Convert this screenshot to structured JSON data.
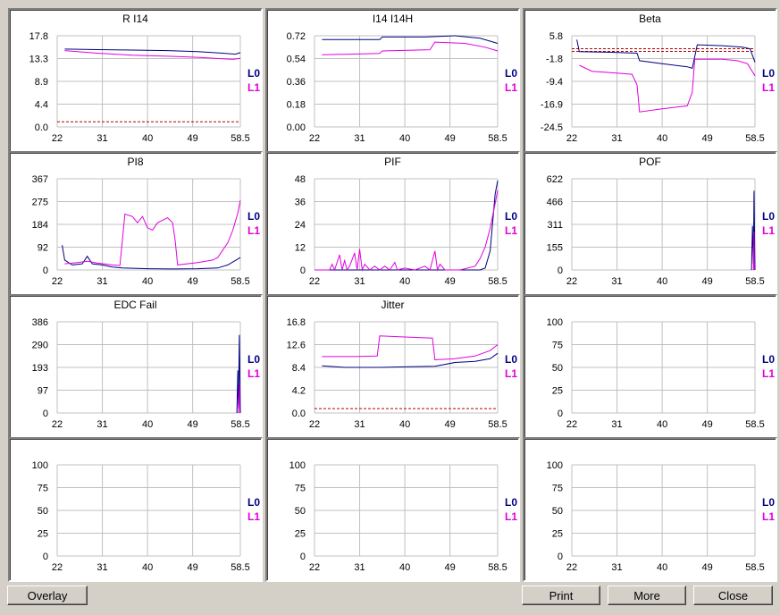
{
  "colors": {
    "L0": "#000080",
    "L1": "#e000e0",
    "threshold": "#b00000",
    "grid": "#c0c0c0"
  },
  "buttons": {
    "overlay": "Overlay",
    "print": "Print",
    "more": "More",
    "close": "Close"
  },
  "chart_data": [
    {
      "type": "line",
      "title": "R I14",
      "x_ticks": [
        "22",
        "31",
        "40",
        "49",
        "58.5"
      ],
      "xlim": [
        22,
        58.5
      ],
      "y_ticks": [
        "0.0",
        "4.4",
        "8.9",
        "13.3",
        "17.8"
      ],
      "ylim": [
        0,
        17.8
      ],
      "legend": [
        "L0",
        "L1"
      ],
      "legend_position": "right",
      "threshold": 1.0,
      "series": [
        {
          "name": "L0",
          "points": [
            [
              23.5,
              15.2
            ],
            [
              30,
              15.1
            ],
            [
              37,
              15.0
            ],
            [
              44,
              14.9
            ],
            [
              50,
              14.7
            ],
            [
              55,
              14.4
            ],
            [
              57.5,
              14.2
            ],
            [
              58.5,
              14.5
            ]
          ]
        },
        {
          "name": "L1",
          "points": [
            [
              23.5,
              14.9
            ],
            [
              30,
              14.4
            ],
            [
              37,
              14.0
            ],
            [
              44,
              13.8
            ],
            [
              50,
              13.6
            ],
            [
              55,
              13.3
            ],
            [
              57,
              13.2
            ],
            [
              58.5,
              13.4
            ]
          ]
        }
      ]
    },
    {
      "type": "line",
      "title": "I14 I14H",
      "x_ticks": [
        "22",
        "31",
        "40",
        "49",
        "58.5"
      ],
      "xlim": [
        22,
        58.5
      ],
      "y_ticks": [
        "0.00",
        "0.18",
        "0.36",
        "0.54",
        "0.72"
      ],
      "ylim": [
        0,
        0.72
      ],
      "legend": [
        "L0",
        "L1"
      ],
      "legend_position": "right",
      "series": [
        {
          "name": "L0",
          "points": [
            [
              23.5,
              0.69
            ],
            [
              35,
              0.69
            ],
            [
              35.5,
              0.71
            ],
            [
              44,
              0.71
            ],
            [
              50,
              0.72
            ],
            [
              55,
              0.7
            ],
            [
              58.5,
              0.66
            ]
          ]
        },
        {
          "name": "L1",
          "points": [
            [
              23.5,
              0.57
            ],
            [
              35,
              0.58
            ],
            [
              35.5,
              0.6
            ],
            [
              45,
              0.61
            ],
            [
              46,
              0.67
            ],
            [
              52,
              0.66
            ],
            [
              56,
              0.63
            ],
            [
              58.5,
              0.6
            ]
          ]
        }
      ]
    },
    {
      "type": "line",
      "title": "Beta",
      "x_ticks": [
        "22",
        "31",
        "40",
        "49",
        "58.5"
      ],
      "xlim": [
        22,
        58.5
      ],
      "y_ticks": [
        "-24.5",
        "-16.9",
        "-9.4",
        "-1.8",
        "5.8"
      ],
      "ylim": [
        -24.5,
        5.8
      ],
      "legend": [
        "L0",
        "L1"
      ],
      "legend_position": "right",
      "thresholds": [
        1.5,
        0.6
      ],
      "series": [
        {
          "name": "L0",
          "points": [
            [
              23,
              4.5
            ],
            [
              23.5,
              0.5
            ],
            [
              30,
              0.3
            ],
            [
              35,
              0.0
            ],
            [
              35.5,
              -2.5
            ],
            [
              40,
              -3.5
            ],
            [
              45,
              -4.5
            ],
            [
              46,
              -5.0
            ],
            [
              47,
              2.8
            ],
            [
              52,
              2.5
            ],
            [
              56,
              2.0
            ],
            [
              57.5,
              1.5
            ],
            [
              58.5,
              -3.0
            ]
          ]
        },
        {
          "name": "L1",
          "points": [
            [
              23.5,
              -4.0
            ],
            [
              26,
              -6.0
            ],
            [
              30,
              -6.5
            ],
            [
              34,
              -7.0
            ],
            [
              35,
              -10.5
            ],
            [
              35.5,
              -19.5
            ],
            [
              40,
              -18.5
            ],
            [
              45,
              -17.5
            ],
            [
              46,
              -13.0
            ],
            [
              46.5,
              -2.0
            ],
            [
              52,
              -2.0
            ],
            [
              55,
              -2.5
            ],
            [
              57,
              -3.5
            ],
            [
              58.5,
              -7.5
            ]
          ]
        }
      ]
    },
    {
      "type": "line",
      "title": "PI8",
      "x_ticks": [
        "22",
        "31",
        "40",
        "49",
        "58.5"
      ],
      "xlim": [
        22,
        58.5
      ],
      "y_ticks": [
        "0",
        "92",
        "184",
        "275",
        "367"
      ],
      "ylim": [
        0,
        367
      ],
      "legend": [
        "L0",
        "L1"
      ],
      "legend_position": "right",
      "series": [
        {
          "name": "L0",
          "points": [
            [
              23,
              100
            ],
            [
              23.5,
              40
            ],
            [
              25,
              20
            ],
            [
              27,
              25
            ],
            [
              28,
              55
            ],
            [
              29,
              25
            ],
            [
              31,
              20
            ],
            [
              33,
              12
            ],
            [
              35,
              8
            ],
            [
              40,
              5
            ],
            [
              45,
              4
            ],
            [
              50,
              5
            ],
            [
              54,
              8
            ],
            [
              56,
              20
            ],
            [
              58.5,
              50
            ]
          ]
        },
        {
          "name": "L1",
          "points": [
            [
              23.5,
              25
            ],
            [
              26,
              30
            ],
            [
              28,
              35
            ],
            [
              30,
              28
            ],
            [
              33,
              20
            ],
            [
              34.5,
              18
            ],
            [
              35,
              120
            ],
            [
              35.5,
              225
            ],
            [
              37,
              215
            ],
            [
              38,
              190
            ],
            [
              39,
              215
            ],
            [
              40,
              170
            ],
            [
              41,
              160
            ],
            [
              42,
              190
            ],
            [
              43,
              200
            ],
            [
              44,
              210
            ],
            [
              45,
              190
            ],
            [
              45.5,
              120
            ],
            [
              46,
              20
            ],
            [
              50,
              30
            ],
            [
              53,
              40
            ],
            [
              54,
              50
            ],
            [
              55,
              80
            ],
            [
              56,
              110
            ],
            [
              57,
              160
            ],
            [
              58,
              230
            ],
            [
              58.5,
              280
            ]
          ]
        }
      ]
    },
    {
      "type": "line",
      "title": "PIF",
      "x_ticks": [
        "22",
        "31",
        "40",
        "49",
        "58.5"
      ],
      "xlim": [
        22,
        58.5
      ],
      "y_ticks": [
        "0",
        "12",
        "24",
        "36",
        "48"
      ],
      "ylim": [
        0,
        48
      ],
      "legend": [
        "L0",
        "L1"
      ],
      "legend_position": "right",
      "series": [
        {
          "name": "L0",
          "points": [
            [
              22,
              0
            ],
            [
              55,
              0
            ],
            [
              56,
              1
            ],
            [
              57,
              10
            ],
            [
              57.5,
              25
            ],
            [
              58,
              40
            ],
            [
              58.5,
              47
            ]
          ]
        },
        {
          "name": "L1",
          "points": [
            [
              22,
              0
            ],
            [
              25,
              0
            ],
            [
              25.5,
              3
            ],
            [
              26,
              0
            ],
            [
              27,
              8
            ],
            [
              27.5,
              0
            ],
            [
              28,
              5
            ],
            [
              28.5,
              0
            ],
            [
              29,
              2
            ],
            [
              30,
              9
            ],
            [
              30.5,
              0
            ],
            [
              31,
              11
            ],
            [
              31.5,
              0
            ],
            [
              32,
              3
            ],
            [
              33,
              0
            ],
            [
              34,
              2
            ],
            [
              35,
              0
            ],
            [
              36,
              2
            ],
            [
              37,
              0
            ],
            [
              38,
              4
            ],
            [
              38.5,
              0
            ],
            [
              40,
              1
            ],
            [
              42,
              0
            ],
            [
              44,
              2
            ],
            [
              45,
              0
            ],
            [
              46,
              10
            ],
            [
              46.5,
              0
            ],
            [
              47,
              3
            ],
            [
              48,
              0
            ],
            [
              51,
              0
            ],
            [
              54,
              2
            ],
            [
              55,
              6
            ],
            [
              56,
              12
            ],
            [
              57,
              22
            ],
            [
              58,
              35
            ],
            [
              58.5,
              42
            ]
          ]
        }
      ]
    },
    {
      "type": "line",
      "title": "POF",
      "x_ticks": [
        "22",
        "31",
        "40",
        "49",
        "58.5"
      ],
      "xlim": [
        22,
        58.5
      ],
      "y_ticks": [
        "0",
        "155",
        "311",
        "466",
        "622"
      ],
      "ylim": [
        0,
        622
      ],
      "legend": [
        "L0",
        "L1"
      ],
      "legend_position": "right",
      "series": [
        {
          "name": "L0",
          "points": [
            [
              57.8,
              0
            ],
            [
              58,
              300
            ],
            [
              58.2,
              40
            ],
            [
              58.3,
              540
            ],
            [
              58.5,
              0
            ]
          ]
        },
        {
          "name": "L1",
          "points": [
            [
              58.2,
              0
            ],
            [
              58.3,
              260
            ],
            [
              58.4,
              0
            ]
          ]
        }
      ]
    },
    {
      "type": "line",
      "title": "EDC Fail",
      "x_ticks": [
        "22",
        "31",
        "40",
        "49",
        "58.5"
      ],
      "xlim": [
        22,
        58.5
      ],
      "y_ticks": [
        "0",
        "97",
        "193",
        "290",
        "386"
      ],
      "ylim": [
        0,
        386
      ],
      "legend": [
        "L0",
        "L1"
      ],
      "legend_position": "right",
      "series": [
        {
          "name": "L0",
          "points": [
            [
              57.8,
              0
            ],
            [
              58,
              180
            ],
            [
              58.1,
              20
            ],
            [
              58.3,
              330
            ],
            [
              58.5,
              0
            ]
          ]
        },
        {
          "name": "L1",
          "points": [
            [
              58.1,
              0
            ],
            [
              58.3,
              120
            ],
            [
              58.4,
              0
            ]
          ]
        }
      ]
    },
    {
      "type": "line",
      "title": "Jitter",
      "x_ticks": [
        "22",
        "31",
        "40",
        "49",
        "58.5"
      ],
      "xlim": [
        22,
        58.5
      ],
      "y_ticks": [
        "0.0",
        "4.2",
        "8.4",
        "12.6",
        "16.8"
      ],
      "ylim": [
        0,
        16.8
      ],
      "legend": [
        "L0",
        "L1"
      ],
      "legend_position": "right",
      "threshold": 0.8,
      "series": [
        {
          "name": "L0",
          "points": [
            [
              23.5,
              8.7
            ],
            [
              28,
              8.4
            ],
            [
              35,
              8.4
            ],
            [
              40,
              8.5
            ],
            [
              46,
              8.6
            ],
            [
              50,
              9.3
            ],
            [
              54,
              9.5
            ],
            [
              57,
              10.0
            ],
            [
              58.5,
              11.0
            ]
          ]
        },
        {
          "name": "L1",
          "points": [
            [
              23.5,
              10.4
            ],
            [
              30,
              10.4
            ],
            [
              34.5,
              10.5
            ],
            [
              35,
              14.2
            ],
            [
              40,
              14.0
            ],
            [
              45.5,
              13.8
            ],
            [
              46,
              9.8
            ],
            [
              50,
              10.0
            ],
            [
              54,
              10.5
            ],
            [
              57,
              11.5
            ],
            [
              58.5,
              12.6
            ]
          ]
        }
      ]
    },
    {
      "type": "line",
      "title": "",
      "x_ticks": [
        "22",
        "31",
        "40",
        "49",
        "58.5"
      ],
      "xlim": [
        22,
        58.5
      ],
      "y_ticks": [
        "0",
        "25",
        "50",
        "75",
        "100"
      ],
      "ylim": [
        0,
        100
      ],
      "legend": [
        "L0",
        "L1"
      ],
      "legend_position": "right",
      "series": []
    },
    {
      "type": "line",
      "title": "",
      "x_ticks": [
        "22",
        "31",
        "40",
        "49",
        "58.5"
      ],
      "xlim": [
        22,
        58.5
      ],
      "y_ticks": [
        "0",
        "25",
        "50",
        "75",
        "100"
      ],
      "ylim": [
        0,
        100
      ],
      "legend": [
        "L0",
        "L1"
      ],
      "legend_position": "right",
      "series": []
    },
    {
      "type": "line",
      "title": "",
      "x_ticks": [
        "22",
        "31",
        "40",
        "49",
        "58.5"
      ],
      "xlim": [
        22,
        58.5
      ],
      "y_ticks": [
        "0",
        "25",
        "50",
        "75",
        "100"
      ],
      "ylim": [
        0,
        100
      ],
      "legend": [
        "L0",
        "L1"
      ],
      "legend_position": "right",
      "series": []
    },
    {
      "type": "line",
      "title": "",
      "x_ticks": [
        "22",
        "31",
        "40",
        "49",
        "58.5"
      ],
      "xlim": [
        22,
        58.5
      ],
      "y_ticks": [
        "0",
        "25",
        "50",
        "75",
        "100"
      ],
      "ylim": [
        0,
        100
      ],
      "legend": [
        "L0",
        "L1"
      ],
      "legend_position": "right",
      "series": []
    }
  ]
}
